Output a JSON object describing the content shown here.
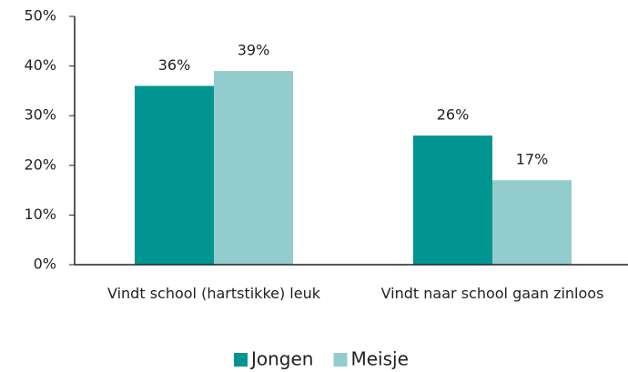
{
  "chart_data": {
    "type": "bar",
    "categories": [
      "Vindt school (hartstikke) leuk",
      "Vindt naar school gaan zinloos"
    ],
    "series": [
      {
        "name": "Jongen",
        "color": "#009590",
        "values": [
          36,
          26
        ],
        "value_labels": [
          "36%",
          "26%"
        ]
      },
      {
        "name": "Meisje",
        "color": "#93cccc",
        "values": [
          39,
          17
        ],
        "value_labels": [
          "39%",
          "17%"
        ]
      }
    ],
    "ylim": [
      0,
      50
    ],
    "yticks": [
      {
        "value": 0,
        "label": "0%"
      },
      {
        "value": 10,
        "label": "10%"
      },
      {
        "value": 20,
        "label": "20%"
      },
      {
        "value": 30,
        "label": "30%"
      },
      {
        "value": 40,
        "label": "40%"
      },
      {
        "value": 50,
        "label": "50%"
      }
    ],
    "legend": "bottom"
  }
}
